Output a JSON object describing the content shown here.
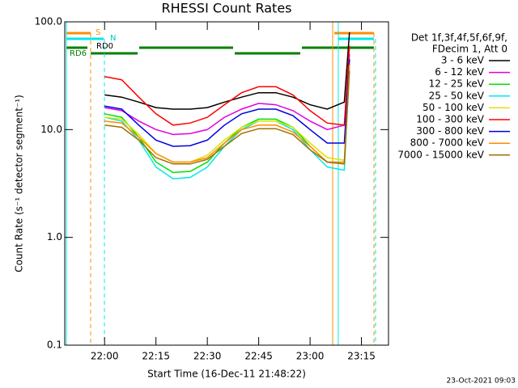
{
  "chart_data": {
    "type": "line",
    "title": "RHESSI Count Rates",
    "x_label": "Start Time (16-Dec-11 21:48:22)",
    "y_label": "Count Rate (s⁻¹ detector segment⁻¹)",
    "log_y": true,
    "xlim": [
      1308.37,
      1402.9
    ],
    "ylim": [
      0.1,
      100
    ],
    "xticks": [
      {
        "value": 1320,
        "label": "22:00"
      },
      {
        "value": 1335,
        "label": "22:15"
      },
      {
        "value": 1350,
        "label": "22:30"
      },
      {
        "value": 1365,
        "label": "22:45"
      },
      {
        "value": 1380,
        "label": "23:00"
      },
      {
        "value": 1395,
        "label": "23:15"
      }
    ],
    "yticks": [
      0.1,
      {
        "value": 1,
        "label": "1.0"
      },
      {
        "value": 10,
        "label": "10.0"
      },
      {
        "value": 100,
        "label": "100.0"
      }
    ],
    "legend_header": [
      "Det 1f,3f,4f,5f,6f,9f,",
      "FDecim 1, Att 0"
    ],
    "annotations": [
      "S",
      "N",
      "RD0",
      "RD6"
    ],
    "footer": "23-Oct-2021 09:03",
    "x": [
      1320,
      1325,
      1330,
      1335,
      1340,
      1345,
      1350,
      1355,
      1360,
      1365,
      1370,
      1375,
      1380,
      1385,
      1390,
      1391.5
    ],
    "series": [
      {
        "name": "3 - 6 keV",
        "color": "#000000",
        "values": [
          21,
          20,
          18,
          16,
          15.5,
          15.5,
          16,
          18,
          20,
          22,
          22,
          20,
          17,
          15.5,
          18,
          80
        ]
      },
      {
        "name": "6 - 12 keV",
        "color": "#e000e0",
        "values": [
          16,
          15,
          12,
          10,
          9,
          9.2,
          10,
          13,
          15.5,
          17.5,
          17,
          15,
          12,
          10,
          11,
          50
        ]
      },
      {
        "name": "12 - 25 keV",
        "color": "#00e000",
        "values": [
          14,
          13,
          8.5,
          5,
          4,
          4.1,
          5,
          7.5,
          10.5,
          12.5,
          12.5,
          10.5,
          7,
          5,
          4.8,
          40
        ]
      },
      {
        "name": "25 - 50 keV",
        "color": "#00e8e8",
        "values": [
          13,
          12,
          8,
          4.5,
          3.5,
          3.6,
          4.5,
          7,
          10,
          12,
          12,
          10,
          6.5,
          4.5,
          4.2,
          40
        ]
      },
      {
        "name": "50 - 100 keV",
        "color": "#e0e000",
        "values": [
          13,
          12.5,
          9,
          6,
          5,
          5,
          5.8,
          8,
          10.5,
          12,
          12,
          10.5,
          7.5,
          5.5,
          5.2,
          40
        ]
      },
      {
        "name": "100 - 300 keV",
        "color": "#ff0000",
        "values": [
          31,
          29,
          20,
          14,
          11,
          11.5,
          13,
          17,
          22,
          25,
          25,
          21,
          15,
          11.5,
          11,
          60
        ]
      },
      {
        "name": "300 - 800 keV",
        "color": "#0000e0",
        "values": [
          16.5,
          15.5,
          11,
          8,
          7,
          7.1,
          8,
          11,
          14,
          15.5,
          15.5,
          13.5,
          10,
          7.5,
          7.5,
          45
        ]
      },
      {
        "name": "800 - 7000 keV",
        "color": "#ff8c00",
        "values": [
          12,
          11.5,
          8.5,
          6,
          5,
          5,
          5.5,
          7.5,
          10,
          11,
          11,
          9.5,
          7,
          5,
          5,
          40
        ]
      },
      {
        "name": "7000 - 15000 keV",
        "color": "#a07000",
        "values": [
          11,
          10.5,
          8,
          5.5,
          4.8,
          4.8,
          5.3,
          7,
          9.2,
          10.2,
          10.2,
          9,
          6.5,
          5,
          4.8,
          35
        ]
      }
    ]
  }
}
